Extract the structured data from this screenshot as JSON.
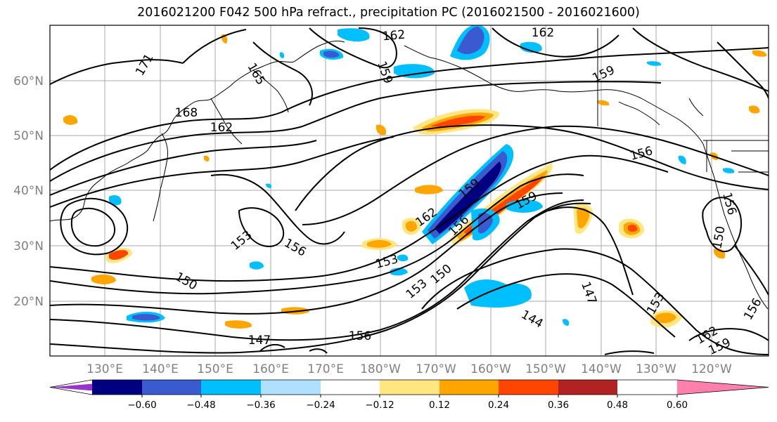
{
  "title": "2016021200 F042 500 hPa refract., precipitation PC (2016021500 - 2016021600)",
  "lat_labels": [
    "60°N",
    "50°N",
    "40°N",
    "30°N",
    "20°N"
  ],
  "lon_labels": [
    "130°E",
    "140°E",
    "150°E",
    "160°E",
    "170°E",
    "180°W",
    "170°W",
    "160°W",
    "150°W",
    "140°W",
    "130°W",
    "120°W"
  ],
  "contour_labels": [
    "171",
    "165",
    "168",
    "162",
    "159",
    "162",
    "162",
    "159",
    "156",
    "162",
    "159",
    "156",
    "153",
    "156",
    "153",
    "150",
    "147",
    "156",
    "153",
    "150",
    "144",
    "147",
    "153",
    "162",
    "159",
    "156",
    "150",
    "156",
    "159"
  ],
  "colorbar": {
    "ticks": [
      "−0.60",
      "−0.48",
      "−0.36",
      "−0.24",
      "−0.12",
      "0.12",
      "0.24",
      "0.36",
      "0.48",
      "0.60"
    ],
    "colors": [
      "#9933cc",
      "#000080",
      "#3a5bcf",
      "#00bfff",
      "#b0e0ff",
      "#ffffff",
      "#ffe680",
      "#ffa500",
      "#ff4500",
      "#b22222",
      "#ff80aa"
    ]
  }
}
